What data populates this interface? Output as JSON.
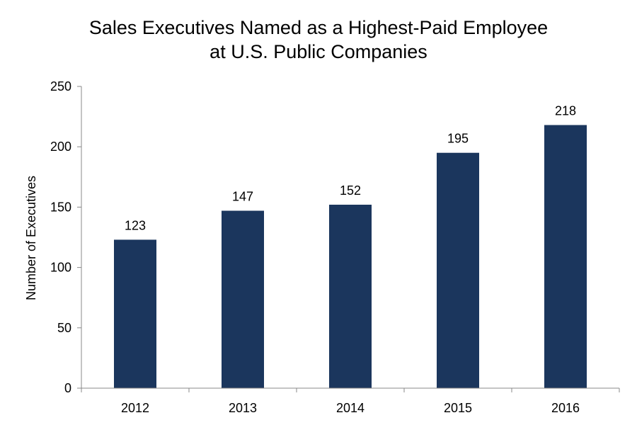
{
  "chart_data": {
    "type": "bar",
    "title_lines": [
      "Sales Executives Named as a Highest-Paid Employee",
      "at U.S. Public Companies"
    ],
    "xlabel": "",
    "ylabel": "Number of Executives",
    "categories": [
      "2012",
      "2013",
      "2014",
      "2015",
      "2016"
    ],
    "values": [
      123,
      147,
      152,
      195,
      218
    ],
    "data_labels": [
      "123",
      "147",
      "152",
      "195",
      "218"
    ],
    "ylim": [
      0,
      250
    ],
    "yticks": [
      "0",
      "50",
      "100",
      "150",
      "200",
      "250"
    ],
    "grid": false,
    "legend": "none",
    "bar_color": "#1b365d",
    "axis_color": "#888888"
  }
}
